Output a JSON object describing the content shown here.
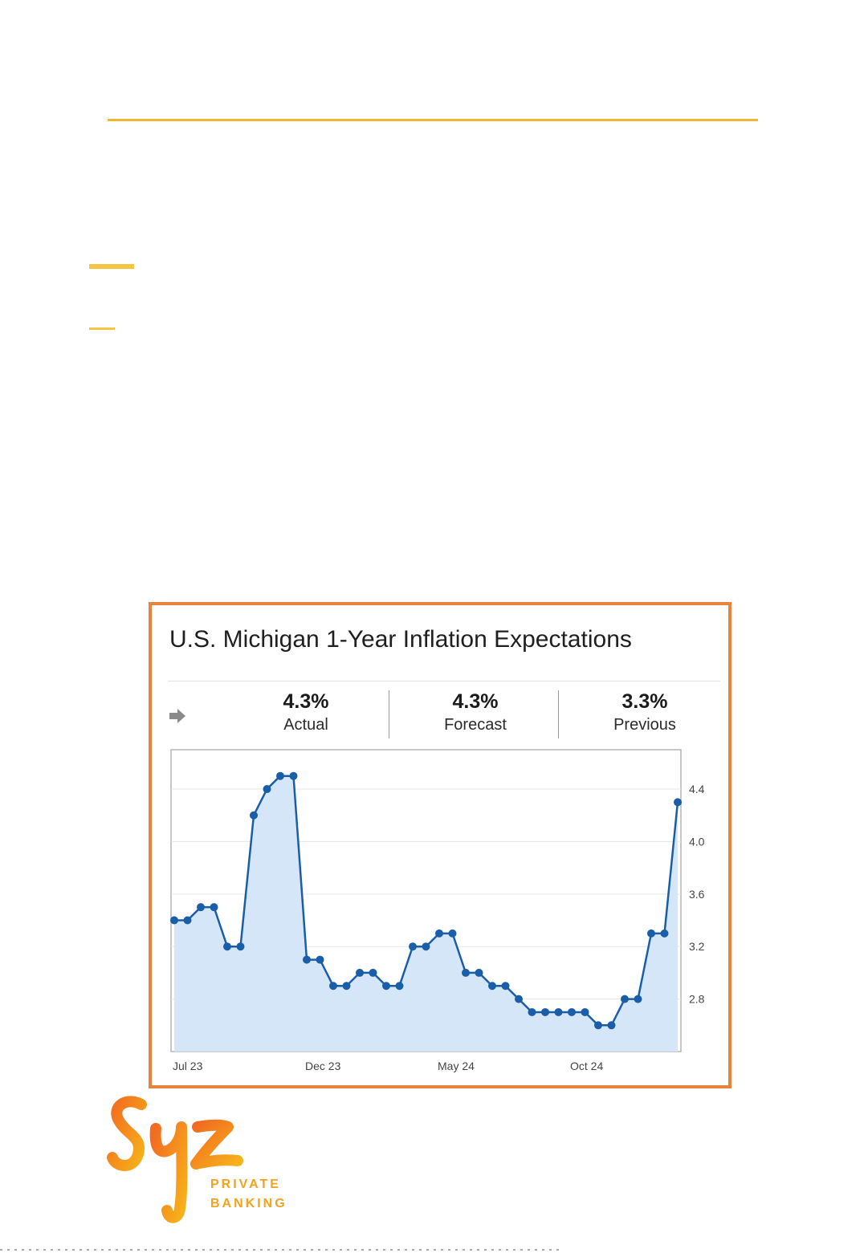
{
  "chart_data": {
    "type": "line",
    "title": "U.S. Michigan 1-Year Inflation Expectations",
    "stats": [
      {
        "value": "4.3%",
        "label": "Actual"
      },
      {
        "value": "4.3%",
        "label": "Forecast"
      },
      {
        "value": "3.3%",
        "label": "Previous"
      }
    ],
    "x_tick_labels": [
      "Jul 23",
      "Dec 23",
      "May 24",
      "Oct 24"
    ],
    "y_tick_labels": [
      "4.4",
      "4.0",
      "3.6",
      "3.2",
      "2.8"
    ],
    "ylim": [
      2.4,
      4.7
    ],
    "y_axis_position": "right",
    "grid": true,
    "values": [
      3.4,
      3.4,
      3.5,
      3.5,
      3.2,
      3.2,
      4.2,
      4.4,
      4.5,
      4.5,
      3.1,
      3.1,
      2.9,
      2.9,
      3.0,
      3.0,
      2.9,
      2.9,
      3.2,
      3.2,
      3.3,
      3.3,
      3.0,
      3.0,
      2.9,
      2.9,
      2.8,
      2.7,
      2.7,
      2.7,
      2.7,
      2.7,
      2.6,
      2.6,
      2.8,
      2.8,
      3.3,
      3.3,
      4.3
    ],
    "x_tick_indices": [
      0,
      10,
      20,
      30
    ],
    "line_color": "#1a5ea8",
    "fill_color": "#d6e6f9"
  },
  "colors": {
    "frame_border": "#e8833a",
    "accent_yellow": "#f5c542"
  },
  "icons": {
    "trend_arrow": "arrow-right-icon",
    "logo": "syz-logo"
  },
  "logo": {
    "line1": "PRIVATE",
    "line2": "BANKING"
  }
}
